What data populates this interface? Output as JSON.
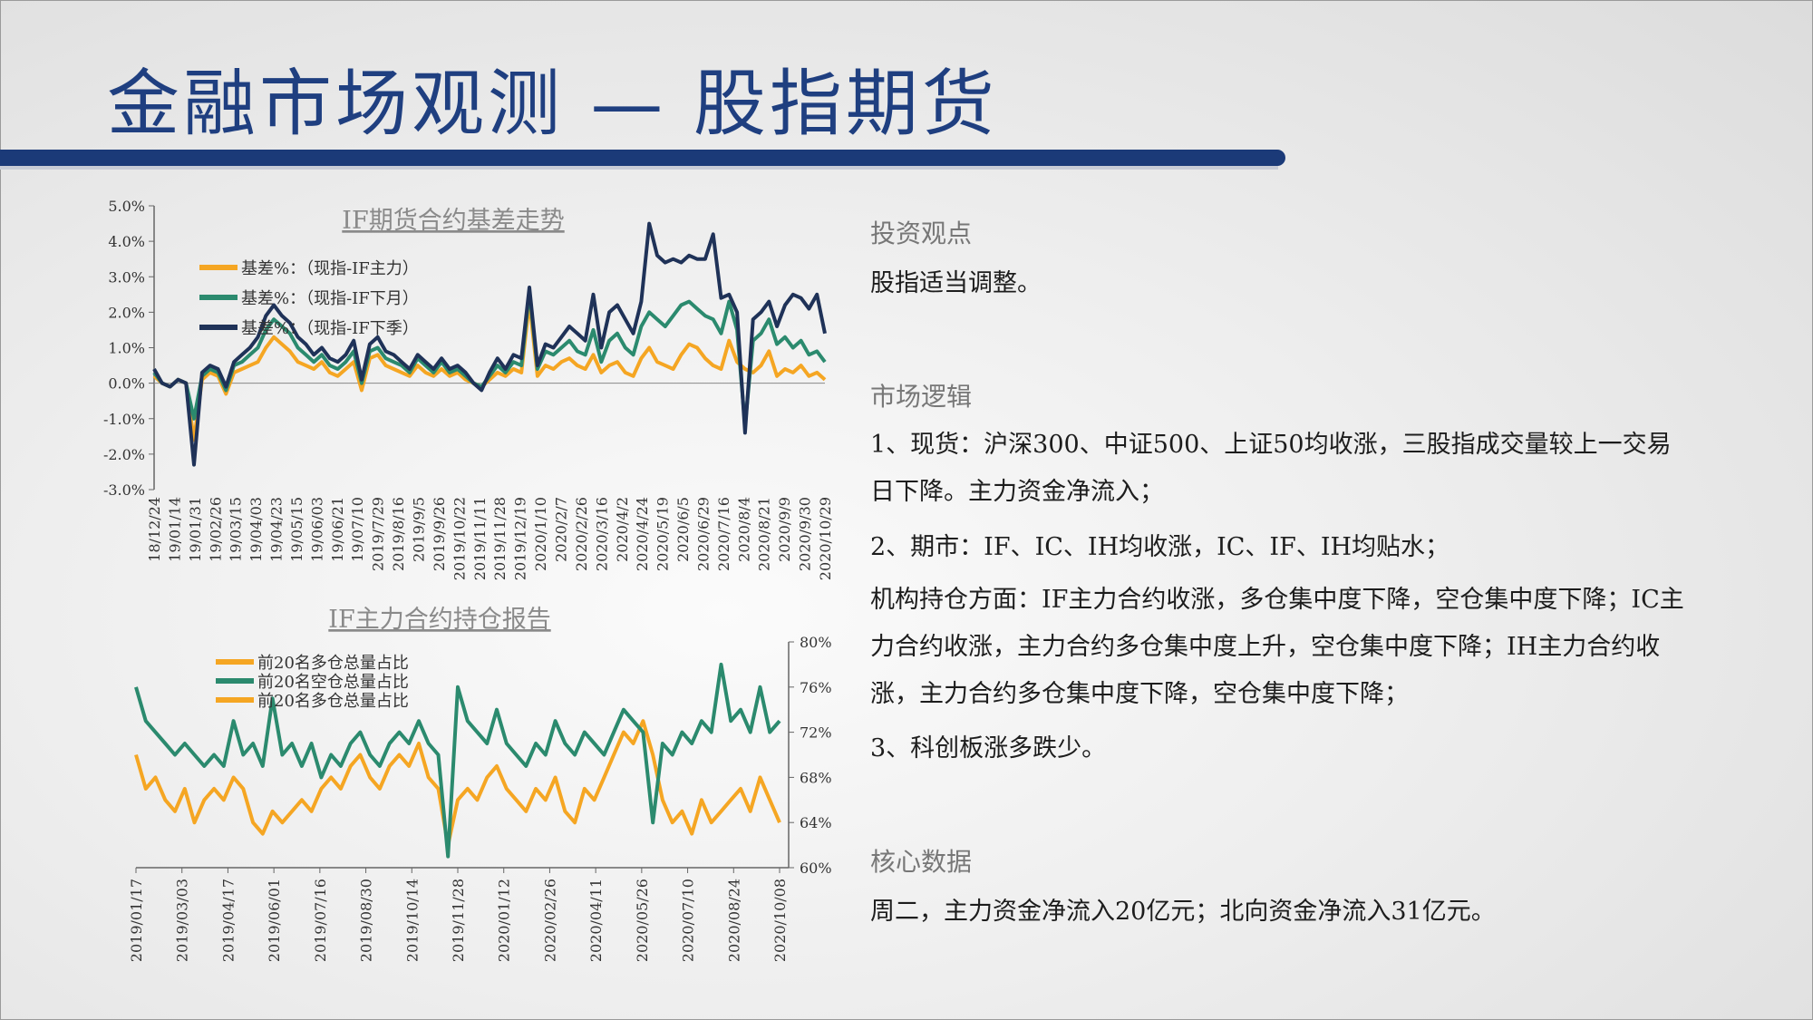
{
  "page": {
    "title": "金融市场观测 — 股指期货"
  },
  "chart_data": [
    {
      "type": "line",
      "title": "IF期货合约基差走势",
      "ylim": [
        -3.0,
        5.0
      ],
      "yticks": [
        "5.0%",
        "4.0%",
        "3.0%",
        "2.0%",
        "1.0%",
        "0.0%",
        "-1.0%",
        "-2.0%",
        "-3.0%"
      ],
      "xticks": [
        "18/12/24",
        "19/01/14",
        "19/01/31",
        "19/02/26",
        "19/03/15",
        "19/04/03",
        "19/04/23",
        "19/05/15",
        "19/06/03",
        "19/06/21",
        "19/07/10",
        "2019/7/29",
        "2019/8/16",
        "2019/9/5",
        "2019/9/26",
        "2019/10/22",
        "2019/11/11",
        "2019/11/28",
        "2019/12/19",
        "2020/1/10",
        "2020/2/7",
        "2020/2/26",
        "2020/3/16",
        "2020/4/2",
        "2020/4/24",
        "2020/5/19",
        "2020/6/5",
        "2020/6/29",
        "2020/7/16",
        "2020/8/4",
        "2020/8/21",
        "2020/9/9",
        "2020/9/30",
        "2020/10/29"
      ],
      "legend_position": "top-left",
      "series": [
        {
          "name": "基差%：（现指-IF主力）",
          "color": "#f5a623",
          "values": [
            0.2,
            0.0,
            -0.1,
            0.1,
            0.0,
            -1.6,
            0.1,
            0.3,
            0.2,
            -0.3,
            0.3,
            0.4,
            0.5,
            0.6,
            1.0,
            1.3,
            1.1,
            0.9,
            0.6,
            0.5,
            0.4,
            0.6,
            0.3,
            0.2,
            0.4,
            0.6,
            -0.2,
            0.7,
            0.8,
            0.5,
            0.4,
            0.3,
            0.2,
            0.5,
            0.3,
            0.2,
            0.4,
            0.2,
            0.3,
            0.1,
            0.0,
            -0.1,
            0.1,
            0.3,
            0.2,
            0.4,
            0.3,
            2.3,
            0.2,
            0.5,
            0.4,
            0.6,
            0.7,
            0.5,
            0.4,
            0.8,
            0.3,
            0.5,
            0.6,
            0.3,
            0.2,
            0.7,
            1.0,
            0.6,
            0.5,
            0.4,
            0.8,
            1.1,
            1.0,
            0.7,
            0.5,
            0.4,
            1.2,
            0.6,
            0.4,
            0.3,
            0.5,
            0.9,
            0.2,
            0.4,
            0.3,
            0.5,
            0.2,
            0.3,
            0.1
          ]
        },
        {
          "name": "基差%：（现指-IF下月）",
          "color": "#2b8a6e",
          "values": [
            0.3,
            0.0,
            -0.1,
            0.1,
            0.0,
            -1.0,
            0.2,
            0.4,
            0.3,
            -0.2,
            0.5,
            0.6,
            0.8,
            1.0,
            1.5,
            1.8,
            1.6,
            1.4,
            1.0,
            0.8,
            0.6,
            0.8,
            0.5,
            0.4,
            0.6,
            0.9,
            0.0,
            0.9,
            1.0,
            0.7,
            0.6,
            0.5,
            0.3,
            0.7,
            0.5,
            0.3,
            0.6,
            0.3,
            0.4,
            0.2,
            0.0,
            -0.1,
            0.2,
            0.5,
            0.3,
            0.6,
            0.5,
            2.6,
            0.4,
            0.9,
            0.8,
            1.0,
            1.2,
            0.9,
            0.8,
            1.5,
            0.6,
            1.2,
            1.4,
            1.0,
            0.8,
            1.6,
            2.0,
            1.8,
            1.6,
            1.9,
            2.2,
            2.3,
            2.1,
            1.9,
            1.8,
            1.4,
            2.3,
            1.5,
            -1.2,
            1.2,
            1.4,
            1.8,
            1.1,
            1.3,
            1.0,
            1.2,
            0.8,
            0.9,
            0.6
          ]
        },
        {
          "name": "基差%：（现指-IF下季）",
          "color": "#1f3258",
          "values": [
            0.4,
            0.0,
            -0.1,
            0.1,
            0.0,
            -2.3,
            0.3,
            0.5,
            0.4,
            -0.1,
            0.6,
            0.8,
            1.0,
            1.3,
            1.9,
            2.2,
            1.9,
            1.7,
            1.3,
            1.1,
            0.8,
            1.0,
            0.7,
            0.6,
            0.8,
            1.2,
            0.1,
            1.1,
            1.3,
            0.9,
            0.8,
            0.6,
            0.4,
            0.8,
            0.6,
            0.4,
            0.7,
            0.4,
            0.5,
            0.3,
            0.0,
            -0.2,
            0.3,
            0.7,
            0.4,
            0.8,
            0.7,
            2.7,
            0.5,
            1.1,
            1.0,
            1.3,
            1.6,
            1.4,
            1.2,
            2.5,
            1.0,
            2.0,
            2.2,
            1.8,
            1.4,
            2.3,
            4.5,
            3.6,
            3.4,
            3.5,
            3.4,
            3.6,
            3.5,
            3.5,
            4.2,
            2.4,
            2.5,
            2.0,
            -1.4,
            1.8,
            2.0,
            2.3,
            1.6,
            2.2,
            2.5,
            2.4,
            2.1,
            2.5,
            1.4
          ]
        }
      ]
    },
    {
      "type": "line",
      "title": "IF主力合约持仓报告",
      "ylim": [
        60,
        80
      ],
      "yticks": [
        "80%",
        "76%",
        "72%",
        "68%",
        "64%",
        "60%"
      ],
      "xticks": [
        "2019/01/17",
        "2019/03/03",
        "2019/04/17",
        "2019/06/01",
        "2019/07/16",
        "2019/08/30",
        "2019/10/14",
        "2019/11/28",
        "2020/01/12",
        "2020/02/26",
        "2020/04/11",
        "2020/05/26",
        "2020/07/10",
        "2020/08/24",
        "2020/10/08"
      ],
      "legend_position": "top-left",
      "series": [
        {
          "name": "前20名多仓总量占比",
          "color": "#f5a623",
          "values": [
            70,
            67,
            68,
            66,
            65,
            67,
            64,
            66,
            67,
            66,
            68,
            67,
            64,
            63,
            65,
            64,
            65,
            66,
            65,
            67,
            68,
            67,
            69,
            70,
            68,
            67,
            69,
            70,
            69,
            71,
            68,
            67,
            62,
            66,
            67,
            66,
            68,
            69,
            67,
            66,
            65,
            67,
            66,
            68,
            65,
            64,
            67,
            66,
            68,
            70,
            72,
            71,
            73,
            70,
            66,
            64,
            65,
            63,
            66,
            64,
            65,
            66,
            67,
            65,
            68,
            66,
            64
          ]
        },
        {
          "name": "前20名空仓总量占比",
          "color": "#2b8a6e",
          "values": [
            76,
            73,
            72,
            71,
            70,
            71,
            70,
            69,
            70,
            69,
            73,
            70,
            71,
            69,
            75,
            70,
            71,
            69,
            71,
            68,
            70,
            69,
            71,
            72,
            70,
            69,
            71,
            72,
            71,
            73,
            71,
            70,
            61,
            76,
            73,
            72,
            71,
            74,
            71,
            70,
            69,
            71,
            70,
            73,
            71,
            70,
            72,
            71,
            70,
            72,
            74,
            73,
            72,
            64,
            71,
            70,
            72,
            71,
            73,
            72,
            78,
            73,
            74,
            72,
            76,
            72,
            73
          ]
        },
        {
          "name": "前20名多仓总量占比",
          "color": "#f5a623",
          "values": []
        }
      ]
    }
  ],
  "right_panel": {
    "view_heading": "投资观点",
    "view_text": "股指适当调整。",
    "logic_heading": "市场逻辑",
    "logic_p1": "1、现货：沪深300、中证500、上证50均收涨，三股指成交量较上一交易日下降。主力资金净流入；",
    "logic_p2": "2、期市：IF、IC、IH均收涨，IC、IF、IH均贴水；",
    "logic_p3": "机构持仓方面：IF主力合约收涨，多仓集中度下降，空仓集中度下降；IC主力合约收涨，主力合约多仓集中度上升，空仓集中度下降；IH主力合约收涨，主力合约多仓集中度下降，空仓集中度下降；",
    "logic_p4": "3、科创板涨多跌少。",
    "data_heading": "核心数据",
    "data_text": "周二，主力资金净流入20亿元；北向资金净流入31亿元。"
  }
}
